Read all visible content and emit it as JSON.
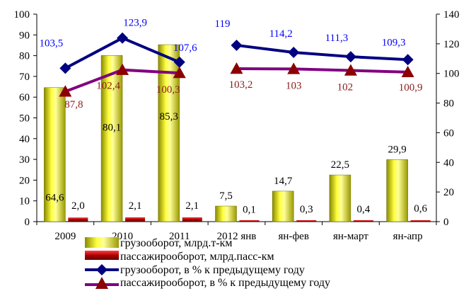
{
  "chart_data": {
    "type": "bar",
    "categories": [
      "2009",
      "2010",
      "2011",
      "2012 янв",
      "ян-фев",
      "ян-март",
      "ян-апр"
    ],
    "y_left": {
      "min": 0,
      "max": 100,
      "step": 10
    },
    "y_right": {
      "min": 0,
      "max": 140,
      "step": 20
    },
    "grid": false,
    "legend_position": "bottom",
    "series": [
      {
        "name": "грузооборот, млрд.т-км",
        "kind": "bar",
        "axis": "left",
        "values": [
          64.6,
          80.1,
          85.3,
          7.5,
          14.7,
          22.5,
          29.9
        ],
        "labels": [
          "64,6",
          "80,1",
          "85,3",
          "7,5",
          "14,7",
          "22,5",
          "29,9"
        ],
        "color": "#e8e800"
      },
      {
        "name": "пассажирооборот, млрд.пасс-км",
        "kind": "bar",
        "axis": "left",
        "values": [
          2.0,
          2.1,
          2.1,
          0.1,
          0.3,
          0.4,
          0.6
        ],
        "labels": [
          "2,0",
          "2,1",
          "2,1",
          "0,1",
          "0,3",
          "0,4",
          "0,6"
        ],
        "color": "#c00000"
      },
      {
        "name": "грузооборот, в % к предыдущему году",
        "kind": "line",
        "axis": "right",
        "values": [
          103.5,
          123.9,
          107.6,
          119,
          114.2,
          111.3,
          109.3
        ],
        "labels": [
          "103,5",
          "123,9",
          "107,6",
          "119",
          "114,2",
          "111,3",
          "109,3"
        ],
        "color": "#000080",
        "label_color": "#0000ff"
      },
      {
        "name": "пассажирооборот, в % к предыдущему году",
        "kind": "line",
        "axis": "right",
        "values": [
          87.8,
          102.4,
          100.3,
          103.2,
          103,
          102,
          100.9
        ],
        "labels": [
          "87,8",
          "102,4",
          "100,3",
          "103,2",
          "103",
          "102",
          "100,9"
        ],
        "color": "#800080",
        "marker_color": "#8b0000",
        "label_color": "#8b1a1a"
      }
    ]
  }
}
